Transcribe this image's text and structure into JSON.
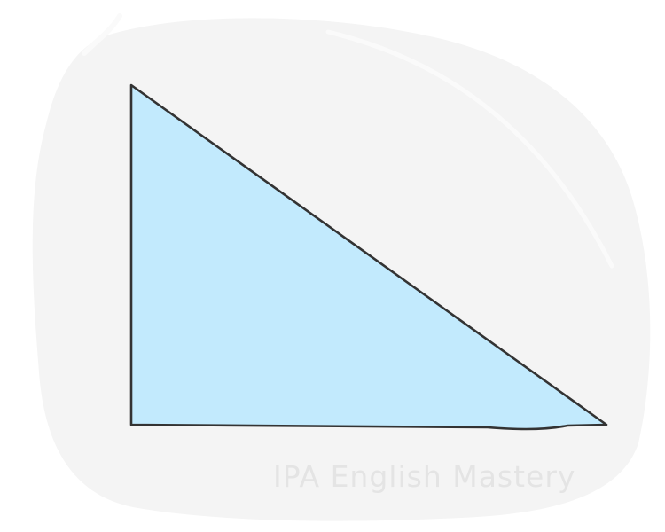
{
  "watermark": {
    "text": "IPA English Mastery"
  },
  "colors": {
    "page_background": "#ffffff",
    "blob_background": "#f4f4f4",
    "blob_highlight": "#fafafa",
    "triangle_fill": "#c2eafd",
    "triangle_outline": "#333333",
    "watermark_text": "#e4e4e4"
  },
  "shape": {
    "type": "right-triangle",
    "icon": "right-triangle-icon"
  }
}
